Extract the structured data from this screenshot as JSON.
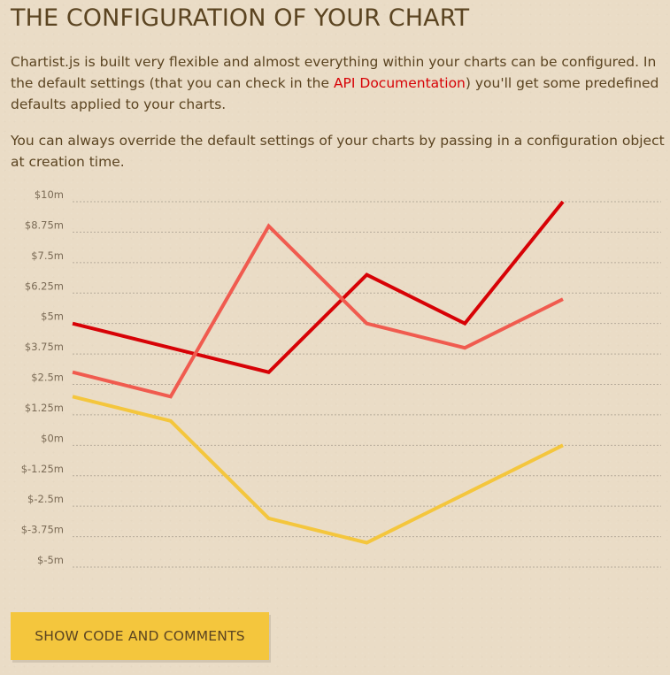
{
  "header": {
    "title": "THE CONFIGURATION OF YOUR CHART"
  },
  "intro": {
    "p1_before": "Chartist.js is built very flexible and almost everything within your charts can be configured. In the default settings (that you can check in the ",
    "p1_link": "API Documentation",
    "p1_after": ") you'll get some predefined defaults applied to your charts.",
    "p2": "You can always override the default settings of your charts by passing in a configuration object at creation time."
  },
  "chart_data": {
    "type": "line",
    "x": [
      1,
      2,
      3,
      4,
      5,
      6
    ],
    "ylim": [
      -5,
      10
    ],
    "yticks": [
      10,
      8.75,
      7.5,
      6.25,
      5,
      3.75,
      2.5,
      1.25,
      0,
      -1.25,
      -2.5,
      -3.75,
      -5
    ],
    "ytick_labels": [
      "$10m",
      "$8.75m",
      "$7.5m",
      "$6.25m",
      "$5m",
      "$3.75m",
      "$2.5m",
      "$1.25m",
      "$0m",
      "$-1.25m",
      "$-2.5m",
      "$-3.75m",
      "$-5m"
    ],
    "grid": true,
    "series": [
      {
        "values": [
          5,
          4,
          3,
          7,
          5,
          10
        ],
        "color": "#d70206"
      },
      {
        "values": [
          3,
          2,
          9,
          5,
          4,
          6
        ],
        "color": "#f05b4f"
      },
      {
        "values": [
          2,
          1,
          -3,
          -4,
          -2,
          0
        ],
        "color": "#f4c63d"
      }
    ]
  },
  "actions": {
    "show_code_label": "SHOW CODE AND COMMENTS"
  }
}
